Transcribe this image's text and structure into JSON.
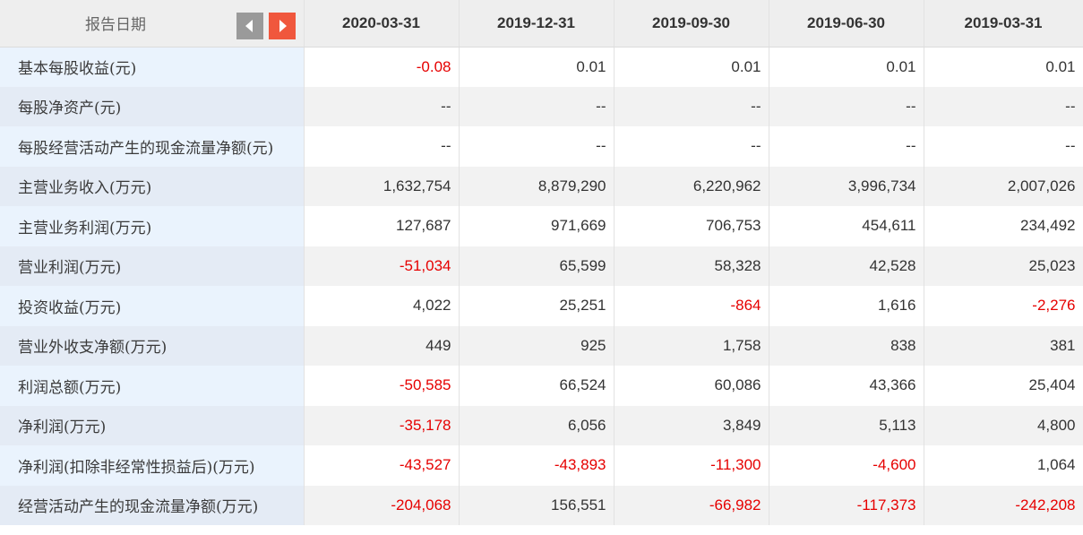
{
  "header": {
    "first_label": "报告日期",
    "prev_icon": "chevron-left-icon",
    "next_icon": "chevron-right-icon",
    "prev_color": "#9a9a9a",
    "next_color": "#f0573d",
    "dates": [
      "2020-03-31",
      "2019-12-31",
      "2019-09-30",
      "2019-06-30",
      "2019-03-31"
    ]
  },
  "colors": {
    "negative": "#e60000",
    "label_bg": "#eaf3fd",
    "header_bg": "#eeeeee"
  },
  "rows": [
    {
      "label": "基本每股收益(元)",
      "values": [
        "-0.08",
        "0.01",
        "0.01",
        "0.01",
        "0.01"
      ]
    },
    {
      "label": "每股净资产(元)",
      "values": [
        "--",
        "--",
        "--",
        "--",
        "--"
      ]
    },
    {
      "label": "每股经营活动产生的现金流量净额(元)",
      "values": [
        "--",
        "--",
        "--",
        "--",
        "--"
      ]
    },
    {
      "label": "主营业务收入(万元)",
      "values": [
        "1,632,754",
        "8,879,290",
        "6,220,962",
        "3,996,734",
        "2,007,026"
      ]
    },
    {
      "label": "主营业务利润(万元)",
      "values": [
        "127,687",
        "971,669",
        "706,753",
        "454,611",
        "234,492"
      ]
    },
    {
      "label": "营业利润(万元)",
      "values": [
        "-51,034",
        "65,599",
        "58,328",
        "42,528",
        "25,023"
      ]
    },
    {
      "label": "投资收益(万元)",
      "values": [
        "4,022",
        "25,251",
        "-864",
        "1,616",
        "-2,276"
      ]
    },
    {
      "label": "营业外收支净额(万元)",
      "values": [
        "449",
        "925",
        "1,758",
        "838",
        "381"
      ]
    },
    {
      "label": "利润总额(万元)",
      "values": [
        "-50,585",
        "66,524",
        "60,086",
        "43,366",
        "25,404"
      ]
    },
    {
      "label": "净利润(万元)",
      "values": [
        "-35,178",
        "6,056",
        "3,849",
        "5,113",
        "4,800"
      ]
    },
    {
      "label": "净利润(扣除非经常性损益后)(万元)",
      "values": [
        "-43,527",
        "-43,893",
        "-11,300",
        "-4,600",
        "1,064"
      ]
    },
    {
      "label": "经营活动产生的现金流量净额(万元)",
      "values": [
        "-204,068",
        "156,551",
        "-66,982",
        "-117,373",
        "-242,208"
      ]
    }
  ]
}
